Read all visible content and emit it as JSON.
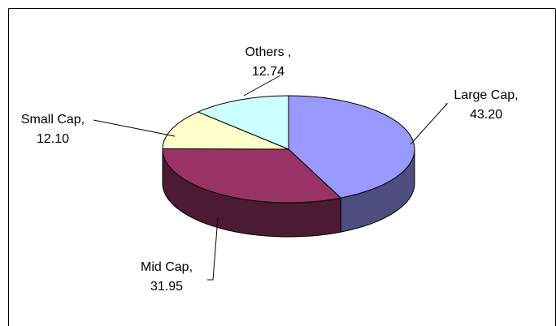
{
  "chart_data": {
    "type": "pie3d",
    "categories": [
      "Large Cap,",
      "Mid Cap,",
      "Small Cap,",
      "Others ,"
    ],
    "values": [
      43.2,
      31.95,
      12.1,
      12.74
    ],
    "value_labels": [
      "43.20",
      "31.95",
      "12.10",
      "12.74"
    ],
    "colors": [
      "#9999ff",
      "#993366",
      "#ffffcc",
      "#ccffff"
    ]
  }
}
